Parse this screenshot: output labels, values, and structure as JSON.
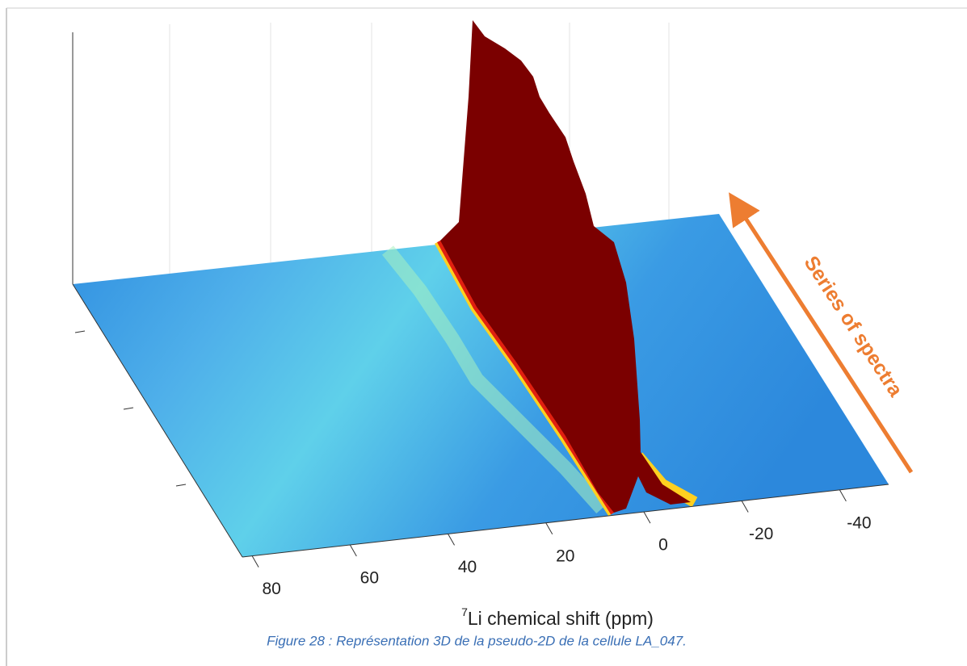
{
  "chart_data": {
    "type": "surface3d",
    "xlabel_isotope": "7",
    "xlabel": "Li chemical shift (ppm)",
    "xlim": [
      82,
      -50
    ],
    "xticks": [
      80,
      60,
      40,
      20,
      0,
      -20,
      -40
    ],
    "annotation": "Series of spectra",
    "annotation_color": "#ed7d31"
  },
  "caption": "Figure 28 : Représentation 3D de la pseudo-2D de la cellule LA_047."
}
